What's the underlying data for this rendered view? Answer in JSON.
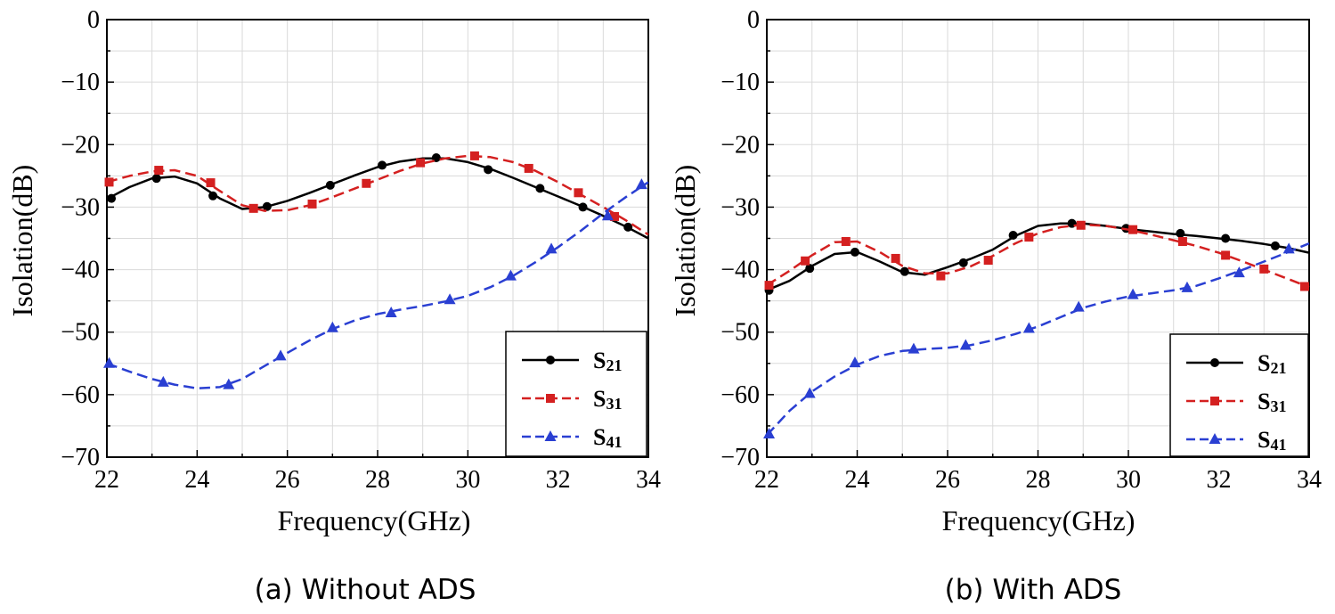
{
  "chart_data": [
    {
      "type": "line",
      "caption": "(a) Without  ADS",
      "xlabel": "Frequency(GHz)",
      "ylabel": "Isolation(dB)",
      "xlim": [
        22,
        34
      ],
      "ylim": [
        -70,
        0
      ],
      "xticks": [
        22,
        24,
        26,
        28,
        30,
        32,
        34
      ],
      "yticks": [
        0,
        -10,
        -20,
        -30,
        -40,
        -50,
        -60,
        -70
      ],
      "grid": true,
      "legend_position": "bottom-right",
      "series": [
        {
          "name": "S21",
          "color": "#000000",
          "dash": "solid",
          "marker": "circle",
          "curve": [
            [
              22,
              -28.7
            ],
            [
              22.5,
              -26.8
            ],
            [
              23,
              -25.4
            ],
            [
              23.5,
              -25.1
            ],
            [
              24,
              -26.2
            ],
            [
              24.5,
              -28.6
            ],
            [
              25,
              -30.3
            ],
            [
              25.5,
              -30.0
            ],
            [
              26,
              -29.0
            ],
            [
              26.5,
              -27.7
            ],
            [
              27,
              -26.3
            ],
            [
              27.5,
              -24.9
            ],
            [
              28,
              -23.6
            ],
            [
              28.5,
              -22.7
            ],
            [
              29,
              -22.2
            ],
            [
              29.5,
              -22.2
            ],
            [
              30,
              -22.8
            ],
            [
              30.5,
              -23.9
            ],
            [
              31,
              -25.3
            ],
            [
              31.5,
              -26.8
            ],
            [
              32,
              -28.3
            ],
            [
              32.5,
              -29.8
            ],
            [
              33,
              -31.4
            ],
            [
              33.5,
              -33.1
            ],
            [
              34,
              -35.0
            ]
          ],
          "markers": [
            [
              22.1,
              -28.6
            ],
            [
              23.1,
              -25.4
            ],
            [
              24.35,
              -28.2
            ],
            [
              25.55,
              -29.9
            ],
            [
              26.95,
              -26.5
            ],
            [
              28.1,
              -23.3
            ],
            [
              29.3,
              -22.1
            ],
            [
              30.45,
              -24.0
            ],
            [
              31.6,
              -27.0
            ],
            [
              32.55,
              -30.0
            ],
            [
              33.55,
              -33.2
            ]
          ]
        },
        {
          "name": "S31",
          "color": "#d42020",
          "dash": "dashed",
          "marker": "square",
          "curve": [
            [
              22,
              -26.0
            ],
            [
              22.5,
              -25.0
            ],
            [
              23,
              -24.3
            ],
            [
              23.5,
              -24.1
            ],
            [
              24,
              -25.0
            ],
            [
              24.5,
              -27.4
            ],
            [
              25,
              -29.7
            ],
            [
              25.5,
              -30.6
            ],
            [
              26,
              -30.5
            ],
            [
              26.5,
              -29.7
            ],
            [
              27,
              -28.4
            ],
            [
              27.5,
              -27.0
            ],
            [
              28,
              -25.6
            ],
            [
              28.5,
              -24.2
            ],
            [
              29,
              -23.0
            ],
            [
              29.5,
              -22.2
            ],
            [
              30,
              -21.8
            ],
            [
              30.5,
              -22.0
            ],
            [
              31,
              -22.8
            ],
            [
              31.5,
              -24.2
            ],
            [
              32,
              -26.0
            ],
            [
              32.5,
              -28.0
            ],
            [
              33,
              -30.0
            ],
            [
              33.5,
              -32.1
            ],
            [
              34,
              -34.4
            ]
          ],
          "markers": [
            [
              22.05,
              -26.0
            ],
            [
              23.15,
              -24.1
            ],
            [
              24.3,
              -26.1
            ],
            [
              25.25,
              -30.2
            ],
            [
              26.55,
              -29.5
            ],
            [
              27.75,
              -26.2
            ],
            [
              28.95,
              -22.9
            ],
            [
              30.15,
              -21.8
            ],
            [
              31.35,
              -23.8
            ],
            [
              32.45,
              -27.7
            ],
            [
              33.25,
              -31.5
            ]
          ]
        },
        {
          "name": "S41",
          "color": "#2a3fd2",
          "dash": "dashed",
          "marker": "triangle",
          "curve": [
            [
              22,
              -55.0
            ],
            [
              22.5,
              -56.3
            ],
            [
              23,
              -57.5
            ],
            [
              23.5,
              -58.4
            ],
            [
              24,
              -59.0
            ],
            [
              24.5,
              -58.8
            ],
            [
              25,
              -57.5
            ],
            [
              25.5,
              -55.4
            ],
            [
              26,
              -53.3
            ],
            [
              26.5,
              -51.3
            ],
            [
              27,
              -49.5
            ],
            [
              27.5,
              -48.1
            ],
            [
              28,
              -47.1
            ],
            [
              28.5,
              -46.4
            ],
            [
              29,
              -45.8
            ],
            [
              29.5,
              -45.1
            ],
            [
              30,
              -44.2
            ],
            [
              30.5,
              -42.8
            ],
            [
              31,
              -41.0
            ],
            [
              31.5,
              -38.8
            ],
            [
              32,
              -36.4
            ],
            [
              32.5,
              -33.8
            ],
            [
              33,
              -31.0
            ],
            [
              33.5,
              -28.4
            ],
            [
              34,
              -26.0
            ]
          ],
          "markers": [
            [
              22.05,
              -55.0
            ],
            [
              23.25,
              -58.0
            ],
            [
              24.7,
              -58.4
            ],
            [
              25.85,
              -53.8
            ],
            [
              27.0,
              -49.3
            ],
            [
              28.3,
              -46.9
            ],
            [
              29.6,
              -44.8
            ],
            [
              30.95,
              -41.0
            ],
            [
              31.85,
              -36.7
            ],
            [
              33.1,
              -31.4
            ],
            [
              33.85,
              -26.4
            ]
          ]
        }
      ]
    },
    {
      "type": "line",
      "caption": "(b) With  ADS",
      "xlabel": "Frequency(GHz)",
      "ylabel": "Isolation(dB)",
      "xlim": [
        22,
        34
      ],
      "ylim": [
        -70,
        0
      ],
      "xticks": [
        22,
        24,
        26,
        28,
        30,
        32,
        34
      ],
      "yticks": [
        0,
        -10,
        -20,
        -30,
        -40,
        -50,
        -60,
        -70
      ],
      "grid": true,
      "legend_position": "bottom-right",
      "series": [
        {
          "name": "S21",
          "color": "#000000",
          "dash": "solid",
          "marker": "circle",
          "curve": [
            [
              22,
              -43.3
            ],
            [
              22.5,
              -41.8
            ],
            [
              23,
              -39.4
            ],
            [
              23.5,
              -37.5
            ],
            [
              24,
              -37.2
            ],
            [
              24.5,
              -38.7
            ],
            [
              25,
              -40.4
            ],
            [
              25.5,
              -40.8
            ],
            [
              26,
              -39.6
            ],
            [
              26.5,
              -38.3
            ],
            [
              27,
              -36.8
            ],
            [
              27.5,
              -34.6
            ],
            [
              28,
              -33.0
            ],
            [
              28.5,
              -32.6
            ],
            [
              29,
              -32.6
            ],
            [
              29.5,
              -33.0
            ],
            [
              30,
              -33.5
            ],
            [
              30.5,
              -33.9
            ],
            [
              31,
              -34.3
            ],
            [
              31.5,
              -34.6
            ],
            [
              32,
              -35.0
            ],
            [
              32.5,
              -35.4
            ],
            [
              33,
              -35.9
            ],
            [
              33.5,
              -36.5
            ],
            [
              34,
              -37.3
            ]
          ],
          "markers": [
            [
              22.05,
              -43.3
            ],
            [
              22.95,
              -39.8
            ],
            [
              23.95,
              -37.2
            ],
            [
              25.05,
              -40.3
            ],
            [
              26.35,
              -38.9
            ],
            [
              27.45,
              -34.5
            ],
            [
              28.75,
              -32.6
            ],
            [
              29.95,
              -33.4
            ],
            [
              31.15,
              -34.2
            ],
            [
              32.15,
              -35.0
            ],
            [
              33.25,
              -36.2
            ]
          ]
        },
        {
          "name": "S31",
          "color": "#d42020",
          "dash": "dashed",
          "marker": "square",
          "curve": [
            [
              22,
              -42.5
            ],
            [
              22.5,
              -40.2
            ],
            [
              23,
              -37.7
            ],
            [
              23.5,
              -35.6
            ],
            [
              24,
              -35.5
            ],
            [
              24.5,
              -37.2
            ],
            [
              25,
              -39.4
            ],
            [
              25.5,
              -40.6
            ],
            [
              26,
              -40.6
            ],
            [
              26.5,
              -39.5
            ],
            [
              27,
              -37.8
            ],
            [
              27.5,
              -35.8
            ],
            [
              28,
              -34.2
            ],
            [
              28.5,
              -33.2
            ],
            [
              29,
              -32.8
            ],
            [
              29.5,
              -33.0
            ],
            [
              30,
              -33.6
            ],
            [
              30.5,
              -34.4
            ],
            [
              31,
              -35.3
            ],
            [
              31.5,
              -36.2
            ],
            [
              32,
              -37.3
            ],
            [
              32.5,
              -38.6
            ],
            [
              33,
              -40.0
            ],
            [
              33.5,
              -41.4
            ],
            [
              34,
              -42.8
            ]
          ],
          "markers": [
            [
              22.05,
              -42.5
            ],
            [
              22.85,
              -38.6
            ],
            [
              23.75,
              -35.5
            ],
            [
              24.85,
              -38.2
            ],
            [
              25.85,
              -41.0
            ],
            [
              26.9,
              -38.5
            ],
            [
              27.8,
              -34.8
            ],
            [
              28.95,
              -32.9
            ],
            [
              30.1,
              -33.6
            ],
            [
              31.2,
              -35.5
            ],
            [
              32.15,
              -37.7
            ],
            [
              33.0,
              -39.9
            ],
            [
              33.9,
              -42.7
            ]
          ]
        },
        {
          "name": "S41",
          "color": "#2a3fd2",
          "dash": "dashed",
          "marker": "triangle",
          "curve": [
            [
              22,
              -66.5
            ],
            [
              22.5,
              -62.6
            ],
            [
              23,
              -59.5
            ],
            [
              23.5,
              -57.1
            ],
            [
              24,
              -55.2
            ],
            [
              24.5,
              -53.8
            ],
            [
              25,
              -53.0
            ],
            [
              25.5,
              -52.7
            ],
            [
              26,
              -52.5
            ],
            [
              26.5,
              -52.1
            ],
            [
              27,
              -51.3
            ],
            [
              27.5,
              -50.3
            ],
            [
              28,
              -49.1
            ],
            [
              28.5,
              -47.6
            ],
            [
              29,
              -46.1
            ],
            [
              29.5,
              -45.1
            ],
            [
              30,
              -44.3
            ],
            [
              30.5,
              -43.8
            ],
            [
              31,
              -43.3
            ],
            [
              31.5,
              -42.6
            ],
            [
              32,
              -41.4
            ],
            [
              32.5,
              -40.1
            ],
            [
              33,
              -38.7
            ],
            [
              33.5,
              -37.3
            ],
            [
              34,
              -35.8
            ]
          ],
          "markers": [
            [
              22.05,
              -66.3
            ],
            [
              22.95,
              -59.8
            ],
            [
              23.95,
              -54.9
            ],
            [
              25.25,
              -52.7
            ],
            [
              26.4,
              -52.1
            ],
            [
              27.8,
              -49.4
            ],
            [
              28.9,
              -46.0
            ],
            [
              30.1,
              -44.0
            ],
            [
              31.3,
              -42.9
            ],
            [
              32.45,
              -40.5
            ],
            [
              33.55,
              -36.7
            ]
          ]
        }
      ]
    }
  ],
  "legend": {
    "entries": [
      {
        "symbol": "S",
        "subscript": "21"
      },
      {
        "symbol": "S",
        "subscript": "31"
      },
      {
        "symbol": "S",
        "subscript": "41"
      }
    ]
  }
}
